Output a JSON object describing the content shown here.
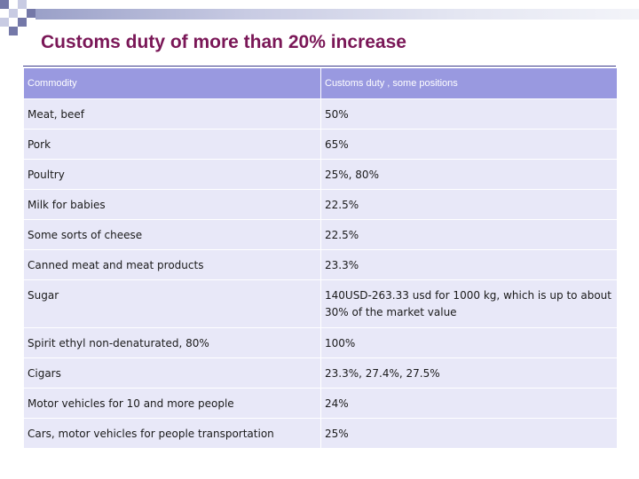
{
  "colors": {
    "title": "#7a1757",
    "header_bg": "#9999e0",
    "row_bg": "#e8e8f8",
    "checker_dark": "#7478a8",
    "checker_light": "#c8cbe3"
  },
  "slide": {
    "title": "Customs duty of more than 20% increase"
  },
  "table": {
    "headers": [
      "Commodity",
      "Customs duty , some positions"
    ],
    "rows": [
      {
        "commodity": "Meat, beef",
        "duty": "50%"
      },
      {
        "commodity": "Pork",
        "duty": "65%"
      },
      {
        "commodity": "Poultry",
        "duty": "25%, 80%"
      },
      {
        "commodity": "Milk for babies",
        "duty": "22.5%"
      },
      {
        "commodity": "Some sorts of cheese",
        "duty": "22.5%"
      },
      {
        "commodity": "Canned meat and meat products",
        "duty": "23.3%"
      },
      {
        "commodity": "Sugar",
        "duty": "140USD-263.33 usd for 1000 kg, which is up to about 30% of the market value"
      },
      {
        "commodity": "Spirit ethyl non-denaturated, 80%",
        "duty": "100%"
      },
      {
        "commodity": "Cigars",
        "duty": "23.3%, 27.4%, 27.5%"
      },
      {
        "commodity": "Motor vehicles for 10 and more people",
        "duty": "24%"
      },
      {
        "commodity": "Cars, motor vehicles for people transportation",
        "duty": "25%"
      }
    ]
  }
}
